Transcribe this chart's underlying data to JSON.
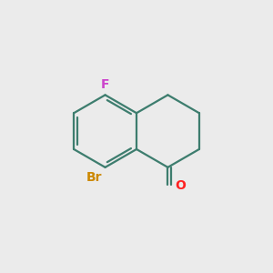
{
  "bg_color": "#ebebeb",
  "bond_color": "#3d7d6e",
  "bond_width": 1.6,
  "atom_labels": {
    "F": {
      "color": "#cc44cc",
      "fontsize": 10,
      "fontweight": "bold"
    },
    "Br": {
      "color": "#cc8800",
      "fontsize": 10,
      "fontweight": "bold"
    },
    "O": {
      "color": "#ff2222",
      "fontsize": 10,
      "fontweight": "bold"
    }
  },
  "figsize": [
    3.0,
    3.0
  ],
  "dpi": 100
}
